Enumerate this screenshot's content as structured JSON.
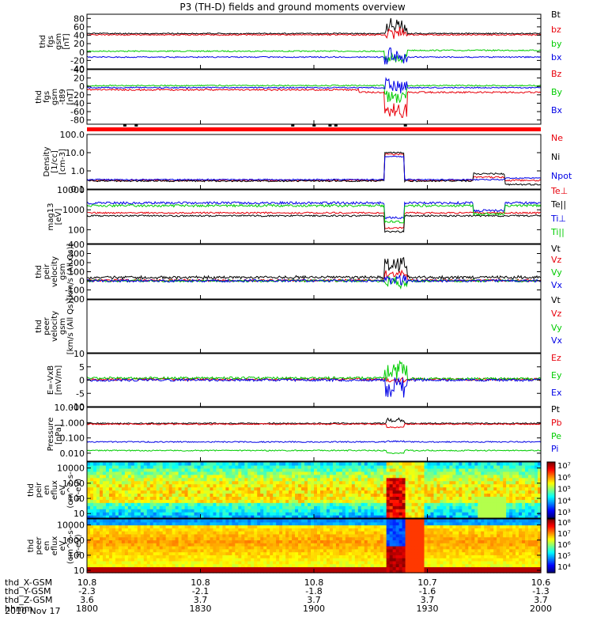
{
  "title": "P3 (TH-D) fields and ground moments overview",
  "date_label": "2010 Nov 17",
  "colors": {
    "black": "#000000",
    "red": "#e8000b",
    "green": "#00cc00",
    "blue": "#0000e6",
    "frame": "#000000"
  },
  "ephemeris": {
    "rows": [
      {
        "label": "thd_X-GSM",
        "values": [
          "10.8",
          "10.8",
          "10.8",
          "10.7",
          "10.6"
        ]
      },
      {
        "label": "thd_Y-GSM",
        "values": [
          "-2.3",
          "-2.1",
          "-1.8",
          "-1.6",
          "-1.3"
        ]
      },
      {
        "label": "thd_Z-GSM",
        "values": [
          "3.6",
          "3.7",
          "3.7",
          "3.7",
          "3.7"
        ]
      },
      {
        "label": "hhmm",
        "values": [
          "1800",
          "1830",
          "1900",
          "1930",
          "2000"
        ]
      }
    ]
  },
  "chart_data": [
    {
      "type": "line",
      "title": "",
      "ylabel": [
        "thd",
        "fgs",
        "gsm",
        "[nT]"
      ],
      "yticks": [
        "80",
        "60",
        "40",
        "20",
        "0",
        "-20",
        "-40"
      ],
      "ylim": [
        -40,
        90
      ],
      "legend": [
        "Bt",
        "bz",
        "by",
        "bx"
      ],
      "legend_colors": [
        "black",
        "red",
        "green",
        "blue"
      ]
    },
    {
      "type": "line",
      "title": "",
      "ylabel": [
        "thd",
        "fgs",
        "gsm",
        "-t89",
        "[nT]"
      ],
      "yticks": [
        "40",
        "20",
        "0",
        "-20",
        "-40",
        "-60",
        "-80"
      ],
      "ylim": [
        -90,
        40
      ],
      "legend": [
        "Bz",
        "By",
        "Bx"
      ],
      "legend_colors": [
        "red",
        "green",
        "blue"
      ]
    },
    {
      "type": "line",
      "title": "",
      "ylabel": [
        "Density",
        "[1/cc]",
        "[cm-3]"
      ],
      "log": true,
      "yticks": [
        "100.0",
        "10.0",
        "1.0",
        "0.1"
      ],
      "ylim": [
        0.1,
        100
      ],
      "legend": [
        "Ne",
        "Ni",
        "Npot"
      ],
      "legend_colors": [
        "red",
        "black",
        "blue"
      ]
    },
    {
      "type": "line",
      "title": "",
      "ylabel": [
        "mag13",
        "[eV]"
      ],
      "log": true,
      "yticks": [
        "10000",
        "1000",
        "100"
      ],
      "ylim": [
        20,
        10000
      ],
      "legend": [
        "Te⊥",
        "Te||",
        "Ti⊥",
        "Ti||"
      ],
      "legend_colors": [
        "red",
        "black",
        "blue",
        "green"
      ]
    },
    {
      "type": "line",
      "title": "",
      "ylabel": [
        "thd",
        "peir",
        "velocity",
        "gsm",
        "[km/s (All Qs)]"
      ],
      "yticks": [
        "400",
        "300",
        "200",
        "100",
        "0",
        "-100",
        "-200"
      ],
      "ylim": [
        -200,
        400
      ],
      "legend": [
        "Vt",
        "Vz",
        "Vy",
        "Vx"
      ],
      "legend_colors": [
        "black",
        "red",
        "green",
        "blue"
      ]
    },
    {
      "type": "line",
      "title": "",
      "ylabel": [
        "thd",
        "peer",
        "velocity",
        "gsm",
        "[km/s (All Qs)]"
      ],
      "yticks": [],
      "ylim": [],
      "legend": [
        "Vt",
        "Vz",
        "Vy",
        "Vx"
      ],
      "legend_colors": [
        "black",
        "red",
        "green",
        "blue"
      ]
    },
    {
      "type": "line",
      "title": "",
      "ylabel": [
        "E=-VxB",
        "[mV/m]"
      ],
      "yticks": [
        "10",
        "5",
        "0",
        "-5",
        "-10"
      ],
      "ylim": [
        -10,
        10
      ],
      "legend": [
        "Ez",
        "Ey",
        "Ex"
      ],
      "legend_colors": [
        "red",
        "green",
        "blue"
      ]
    },
    {
      "type": "line",
      "title": "",
      "ylabel": [
        "Pressure",
        "[nPa]"
      ],
      "log": true,
      "yticks": [
        "10.000",
        "1.000",
        "0.100",
        "0.010"
      ],
      "ylim": [
        0.003,
        10
      ],
      "legend": [
        "Pt",
        "Pb",
        "Pe",
        "Pi"
      ],
      "legend_colors": [
        "black",
        "red",
        "green",
        "blue"
      ]
    },
    {
      "type": "heatmap",
      "title": "",
      "ylabel": [
        "thd",
        "peir",
        "en",
        "eflux",
        "eV",
        "(cm^2-s-",
        "sr-eV)"
      ],
      "log": true,
      "yticks": [
        "10000",
        "1000",
        "100",
        "10"
      ],
      "ylim": [
        5,
        25000
      ],
      "colorbar_ticks": [
        "10⁷",
        "10⁶",
        "10⁵",
        "10⁴",
        "10³"
      ]
    },
    {
      "type": "heatmap",
      "title": "",
      "ylabel": [
        "thd",
        "peer",
        "en",
        "eflux",
        "eV",
        "(cm^2-s-",
        "sr-eV)"
      ],
      "log": true,
      "yticks": [
        "10000",
        "1000",
        "100",
        "10"
      ],
      "ylim": [
        7,
        25000
      ],
      "colorbar_ticks": [
        "10⁸",
        "10⁷",
        "10⁶",
        "10⁵",
        "10⁴"
      ]
    }
  ]
}
